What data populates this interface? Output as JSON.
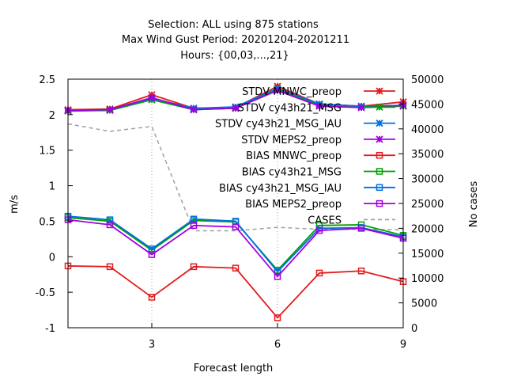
{
  "title_lines": [
    "Selection: ALL using   875 stations",
    "Max Wind Gust   Period: 20201204-20201211",
    "Hours: {00,03,...,21}"
  ],
  "chart_data": {
    "type": "line",
    "xlabel": "Forecast length",
    "ylabel": "m/s",
    "y2label": "No cases",
    "xlim": [
      1,
      9
    ],
    "ylim": [
      -1,
      2.5
    ],
    "y2lim": [
      0,
      50000
    ],
    "xticks": [
      3,
      6,
      9
    ],
    "yticks": [
      -1,
      -0.5,
      0,
      0.5,
      1,
      1.5,
      2,
      2.5
    ],
    "y2ticks": [
      0,
      5000,
      10000,
      15000,
      20000,
      25000,
      30000,
      35000,
      40000,
      45000,
      50000
    ],
    "grid": "x-dotted",
    "legend_position": "top-right",
    "x": [
      1,
      2,
      3,
      4,
      5,
      6,
      7,
      8,
      9
    ],
    "series": [
      {
        "name": "STDV MNWC_preop",
        "color": "#e41a1c",
        "marker": "x-star",
        "values": [
          2.07,
          2.08,
          2.28,
          2.09,
          2.1,
          2.4,
          2.15,
          2.12,
          2.18
        ]
      },
      {
        "name": "STDV cy43h21_MSG",
        "color": "#00a000",
        "marker": "x-star",
        "values": [
          2.05,
          2.06,
          2.21,
          2.07,
          2.09,
          2.36,
          2.13,
          2.1,
          2.12
        ]
      },
      {
        "name": "STDV cy43h21_MSG_IAU",
        "color": "#0070e0",
        "marker": "x-star",
        "values": [
          2.06,
          2.07,
          2.23,
          2.09,
          2.11,
          2.37,
          2.15,
          2.12,
          2.13
        ]
      },
      {
        "name": "STDV MEPS2_preop",
        "color": "#a000e0",
        "marker": "x-star",
        "values": [
          2.06,
          2.07,
          2.24,
          2.07,
          2.09,
          2.34,
          2.12,
          2.1,
          2.13
        ]
      },
      {
        "name": "BIAS MNWC_preop",
        "color": "#e41a1c",
        "marker": "square",
        "values": [
          -0.13,
          -0.14,
          -0.57,
          -0.14,
          -0.16,
          -0.86,
          -0.23,
          -0.2,
          -0.35
        ]
      },
      {
        "name": "BIAS cy43h21_MSG",
        "color": "#00a000",
        "marker": "square",
        "values": [
          0.55,
          0.5,
          0.09,
          0.51,
          0.49,
          -0.19,
          0.44,
          0.45,
          0.3
        ]
      },
      {
        "name": "BIAS cy43h21_MSG_IAU",
        "color": "#0070e0",
        "marker": "square",
        "values": [
          0.57,
          0.52,
          0.11,
          0.53,
          0.5,
          -0.21,
          0.4,
          0.41,
          0.28
        ]
      },
      {
        "name": "BIAS MEPS2_preop",
        "color": "#a000e0",
        "marker": "square",
        "values": [
          0.52,
          0.45,
          0.03,
          0.44,
          0.42,
          -0.28,
          0.37,
          0.4,
          0.26
        ]
      }
    ],
    "cases_series": {
      "name": "CASES",
      "color": "#a0a0a0",
      "axis": "right",
      "values": [
        41000,
        39500,
        40500,
        19500,
        19500,
        20200,
        19800,
        19800,
        19700
      ]
    }
  }
}
